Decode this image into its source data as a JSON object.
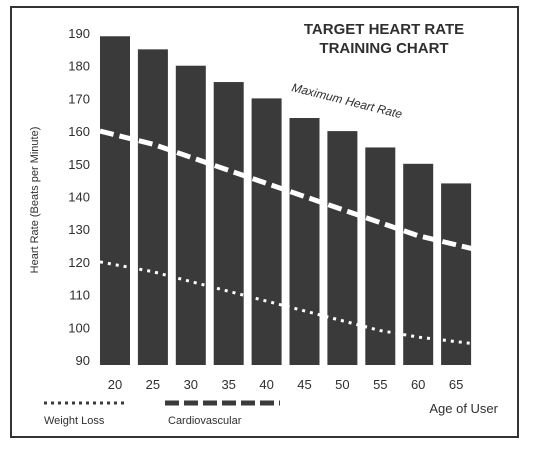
{
  "chart_data": {
    "type": "bar",
    "title": [
      "TARGET HEART RATE",
      "TRAINING CHART"
    ],
    "xlabel": "Age of User",
    "ylabel": "Heart Rate (Beats per Minute)",
    "ylim": [
      90,
      190
    ],
    "yticks": [
      190,
      180,
      170,
      160,
      150,
      140,
      130,
      120,
      110,
      100,
      90
    ],
    "categories": [
      "20",
      "25",
      "30",
      "35",
      "40",
      "45",
      "50",
      "55",
      "60",
      "65"
    ],
    "series": [
      {
        "name": "Maximum Heart Rate",
        "values": [
          189,
          185,
          180,
          175,
          170,
          164,
          160,
          155,
          150,
          144
        ]
      }
    ],
    "lines": [
      {
        "name": "Cardiovascular",
        "style": "dashed",
        "values": [
          160,
          156,
          152,
          148,
          144,
          140,
          136,
          132,
          128,
          124
        ]
      },
      {
        "name": "Weight Loss",
        "style": "dotted",
        "values": [
          120,
          117,
          114,
          111,
          108,
          105,
          102,
          99,
          97,
          95
        ]
      }
    ],
    "annotation": "Maximum Heart Rate",
    "legend": [
      {
        "label": "Weight Loss",
        "style": "dotted"
      },
      {
        "label": "Cardiovascular",
        "style": "dashed"
      }
    ],
    "colors": {
      "bar": "#3a3a3a",
      "line": "#ffffff",
      "text": "#2f2f2f"
    },
    "grid": false,
    "legend_position": "bottom-left"
  }
}
